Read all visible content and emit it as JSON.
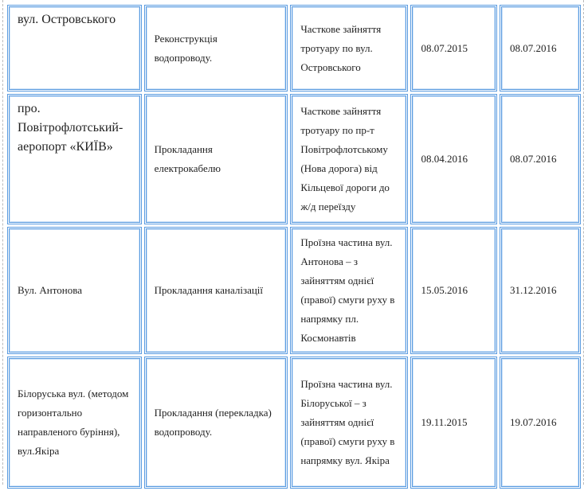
{
  "rows": [
    {
      "street": "вул. Островського",
      "work": "Реконструкція водопроводу.",
      "area": "Часткове зайняття тротуару по вул. Островського",
      "start": "08.07.2015",
      "end": "08.07.2016"
    },
    {
      "street": "про. Повітрофлотський-аеропорт «КИЇВ»",
      "work": "Прокладання електрокабелю",
      "area": "Часткове зайняття тротуару по пр-т Повітрофлотському (Нова дорога) від Кільцевої дороги до ж/д переїзду",
      "start": "08.04.2016",
      "end": "08.07.2016"
    },
    {
      "street": "Вул. Антонова",
      "work": "Прокладання каналізації",
      "area": "Проїзна частина вул. Антонова – з зайняттям однієї (правої) смуги руху в напрямку пл. Космонавтів",
      "start": "15.05.2016",
      "end": "31.12.2016"
    },
    {
      "street": "Білоруська вул. (методом горизонтально направленого буріння), вул.Якіра",
      "work": "Прокладання (перекладка) водопроводу.",
      "area": "Проїзна частина вул. Білоруської – з зайняттям однієї (правої) смуги руху в напрямку вул. Якіра",
      "start": "19.11.2015",
      "end": "19.07.2016"
    }
  ]
}
